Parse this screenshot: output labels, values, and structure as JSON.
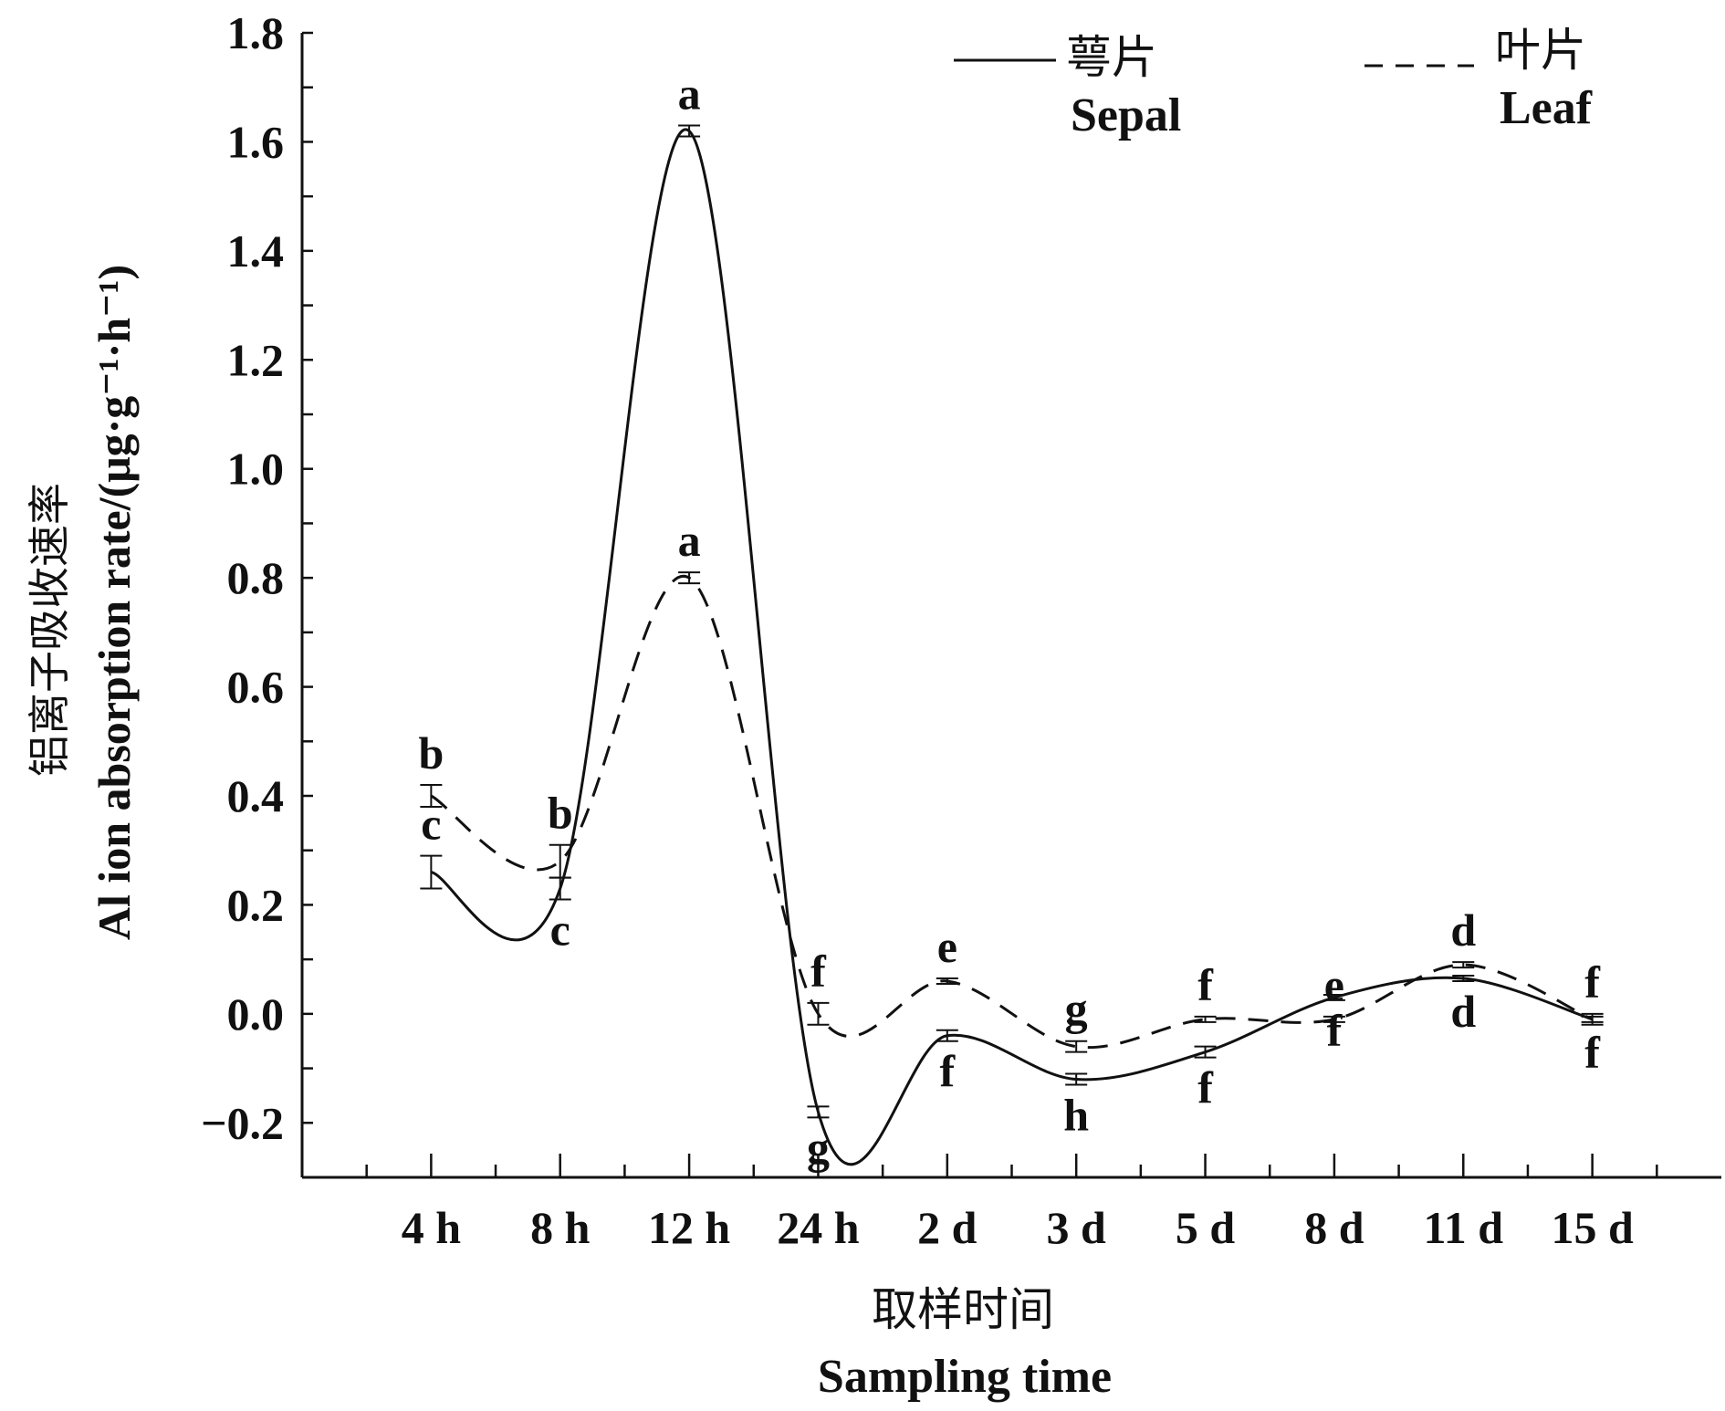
{
  "chart_data": {
    "type": "line",
    "categories": [
      "4 h",
      "8 h",
      "12 h",
      "24 h",
      "2 d",
      "3 d",
      "5 d",
      "8 d",
      "11 d",
      "15 d"
    ],
    "series": [
      {
        "name": "萼片",
        "name_en": "Sepal",
        "style": "solid",
        "values": [
          0.26,
          0.23,
          1.62,
          -0.18,
          -0.04,
          -0.12,
          -0.07,
          0.03,
          0.065,
          -0.01
        ],
        "errors": [
          0.03,
          0.02,
          0.01,
          0.01,
          0.01,
          0.01,
          0.01,
          0.005,
          0.005,
          0.005
        ],
        "letters": [
          "c",
          "c",
          "a",
          "g",
          "f",
          "h",
          "f",
          "f",
          "d",
          "f"
        ],
        "letter_pos": [
          "above",
          "below",
          "above",
          "below",
          "below",
          "below",
          "below",
          "below",
          "below",
          "below"
        ]
      },
      {
        "name": "叶片",
        "name_en": "Leaf",
        "style": "dashed",
        "values": [
          0.4,
          0.28,
          0.8,
          0.0,
          0.06,
          -0.06,
          -0.01,
          -0.01,
          0.09,
          -0.01
        ],
        "errors": [
          0.02,
          0.03,
          0.01,
          0.02,
          0.005,
          0.01,
          0.005,
          0.005,
          0.005,
          0.01
        ],
        "letters": [
          "b",
          "b",
          "a",
          "f",
          "e",
          "g",
          "f",
          "e",
          "d",
          "f"
        ],
        "letter_pos": [
          "above",
          "above",
          "above",
          "above",
          "above",
          "above",
          "above",
          "above",
          "above",
          "above"
        ]
      }
    ],
    "ylim": [
      -0.3,
      1.8
    ],
    "yticks": [
      "−0.2",
      "0.0",
      "0.2",
      "0.4",
      "0.6",
      "0.8",
      "1.0",
      "1.2",
      "1.4",
      "1.6",
      "1.8"
    ],
    "ytick_values": [
      -0.2,
      0,
      0.2,
      0.4,
      0.6,
      0.8,
      1.0,
      1.2,
      1.4,
      1.6,
      1.8
    ],
    "ylabel_cn": "铝离子吸收速率",
    "ylabel": "Al ion absorption rate/(μg·g⁻¹·h⁻¹)",
    "xlabel_cn": "取样时间",
    "xlabel": "Sampling time",
    "legend_position": "top-right",
    "grid": false
  }
}
